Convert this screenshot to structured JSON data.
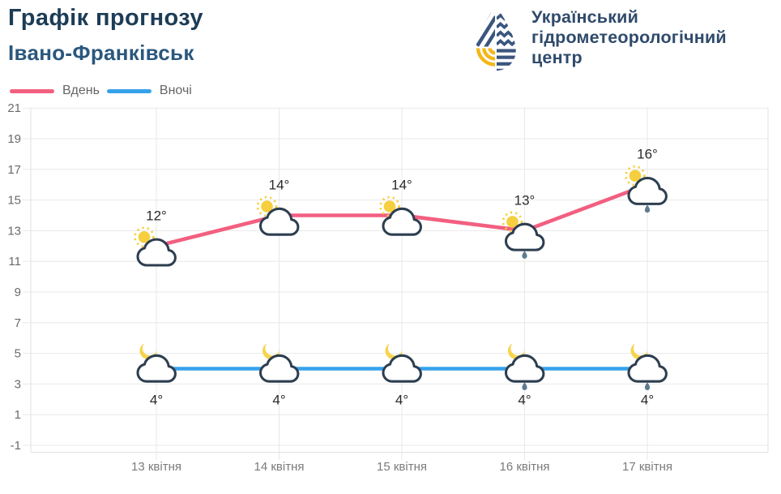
{
  "header": {
    "title": "Графік прогнозу",
    "subtitle": "Івано-Франківськ"
  },
  "logo": {
    "name": "Український гідрометеорологічний центр",
    "lines": [
      "Український",
      "гідрометеорологічний",
      "центр"
    ],
    "navy": "#3a567e",
    "yellow": "#f5b718"
  },
  "legend": {
    "items": [
      {
        "label": "Вдень",
        "color": "#f25f80"
      },
      {
        "label": "Вночі",
        "color": "#36a2eb"
      }
    ]
  },
  "chart_data": {
    "type": "line",
    "title": "Графік прогнозу Івано-Франківськ",
    "categories": [
      "13 квітня",
      "14 квітня",
      "15 квітня",
      "16 квітня",
      "17 квітня"
    ],
    "series": [
      {
        "name": "Вдень",
        "color": "#f25f80",
        "values": [
          12,
          14,
          14,
          13,
          16
        ],
        "point_labels": [
          "12°",
          "14°",
          "14°",
          "13°",
          "16°"
        ],
        "icons": [
          "sun-cloud",
          "sun-cloud",
          "sun-cloud",
          "sun-cloud-rain",
          "sun-cloud-rain"
        ],
        "label_position": "above"
      },
      {
        "name": "Вночі",
        "color": "#36a2eb",
        "values": [
          4,
          4,
          4,
          4,
          4
        ],
        "point_labels": [
          "4°",
          "4°",
          "4°",
          "4°",
          "4°"
        ],
        "icons": [
          "moon-cloud",
          "moon-cloud",
          "moon-cloud",
          "moon-cloud-rain",
          "moon-cloud-rain"
        ],
        "label_position": "below"
      }
    ],
    "yticks": [
      21,
      19,
      17,
      15,
      13,
      11,
      9,
      7,
      5,
      3,
      1,
      -1
    ],
    "ylim": [
      -1,
      21
    ],
    "grid": true,
    "legend_position": "top-left",
    "grid_color": "#e8e8e8",
    "axis_border_color": "#e2e2e2",
    "icon_colors": {
      "cloud_stroke": "#2d3e50",
      "cloud_fill": "#ffffff",
      "sun": "#f6cf3f",
      "moon": "#f6d44e",
      "raindrop": "#5d7b90"
    }
  }
}
